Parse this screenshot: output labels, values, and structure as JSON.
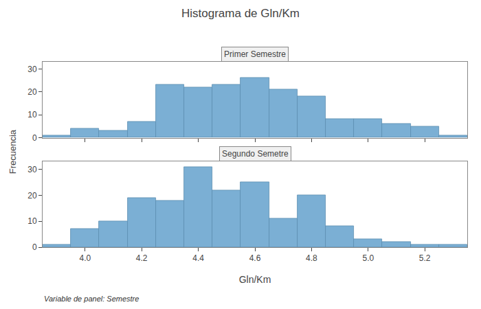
{
  "chart_data": {
    "type": "histogram",
    "title": "Histograma de Gln/Km",
    "xlabel": "Gln/Km",
    "ylabel": "Frecuencia",
    "annotation": "Variable de panel: Semestre",
    "color": "#7BAFD4",
    "grid": false,
    "xlim": [
      3.85,
      5.35
    ],
    "ylim": [
      0,
      33
    ],
    "yticks": [
      0,
      10,
      20,
      30
    ],
    "xticks": [
      {
        "value": 4.0,
        "label": "4.0"
      },
      4.2,
      4.4,
      4.6,
      4.8,
      {
        "value": 5.0,
        "label": "5.0"
      },
      5.2
    ],
    "panels": [
      {
        "title": "Primer Semestre",
        "tick_labels": "y",
        "bins": [
          3.85,
          3.95,
          4.05,
          4.15,
          4.25,
          4.35,
          4.45,
          4.55,
          4.65,
          4.75,
          4.85,
          4.95,
          5.05,
          5.15,
          5.25,
          5.35
        ],
        "values": [
          1,
          4,
          3,
          7,
          23,
          22,
          23,
          26,
          21,
          18,
          8,
          8,
          6,
          5,
          1
        ]
      },
      {
        "title": "Segundo Semetre",
        "bins": [
          3.85,
          3.95,
          4.05,
          4.15,
          4.25,
          4.35,
          4.45,
          4.55,
          4.65,
          4.75,
          4.85,
          4.95,
          5.05,
          5.15,
          5.25,
          5.35
        ],
        "values": [
          1,
          7,
          10,
          19,
          18,
          31,
          22,
          25,
          11,
          20,
          8,
          3,
          2,
          1,
          1
        ]
      }
    ]
  }
}
